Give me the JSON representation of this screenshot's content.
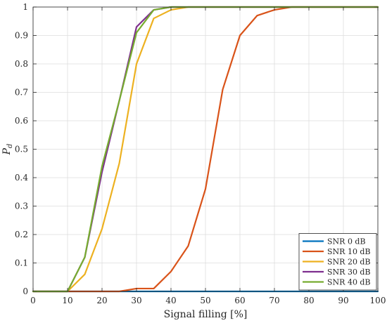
{
  "chart_data": {
    "type": "line",
    "xlabel": "Signal filling [%]",
    "ylabel_main": "P",
    "ylabel_sub": "d",
    "xlim": [
      0,
      100
    ],
    "ylim": [
      0,
      1
    ],
    "xticks": [
      0,
      10,
      20,
      30,
      40,
      50,
      60,
      70,
      80,
      90,
      100
    ],
    "yticks": [
      0,
      0.1,
      0.2,
      0.3,
      0.4,
      0.5,
      0.6,
      0.7,
      0.8,
      0.9,
      1
    ],
    "grid": true,
    "legend_position": "bottom-right",
    "x": [
      0,
      5,
      10,
      15,
      20,
      25,
      30,
      35,
      40,
      45,
      50,
      55,
      60,
      65,
      70,
      75,
      80,
      85,
      90,
      95,
      100
    ],
    "series": [
      {
        "name": "SNR 0 dB",
        "color": "#0072BD",
        "values": [
          0,
          0,
          0,
          0,
          0,
          0,
          0,
          0,
          0,
          0,
          0,
          0,
          0,
          0,
          0,
          0,
          0,
          0,
          0,
          0,
          0
        ]
      },
      {
        "name": "SNR 10 dB",
        "color": "#D95319",
        "values": [
          0,
          0,
          0,
          0,
          0,
          0,
          0.01,
          0.01,
          0.07,
          0.16,
          0.36,
          0.71,
          0.9,
          0.97,
          0.99,
          1,
          1,
          1,
          1,
          1,
          1
        ]
      },
      {
        "name": "SNR 20 dB",
        "color": "#EDB120",
        "values": [
          0,
          0,
          0,
          0.06,
          0.22,
          0.45,
          0.8,
          0.96,
          0.99,
          1,
          1,
          1,
          1,
          1,
          1,
          1,
          1,
          1,
          1,
          1,
          1
        ]
      },
      {
        "name": "SNR 30 dB",
        "color": "#7E2F8E",
        "values": [
          0,
          0,
          0,
          0.12,
          0.42,
          0.67,
          0.93,
          0.99,
          1,
          1,
          1,
          1,
          1,
          1,
          1,
          1,
          1,
          1,
          1,
          1,
          1
        ]
      },
      {
        "name": "SNR 40 dB",
        "color": "#77AC30",
        "values": [
          0,
          0,
          0,
          0.12,
          0.44,
          0.67,
          0.91,
          0.99,
          1,
          1,
          1,
          1,
          1,
          1,
          1,
          1,
          1,
          1,
          1,
          1,
          1
        ]
      }
    ]
  }
}
